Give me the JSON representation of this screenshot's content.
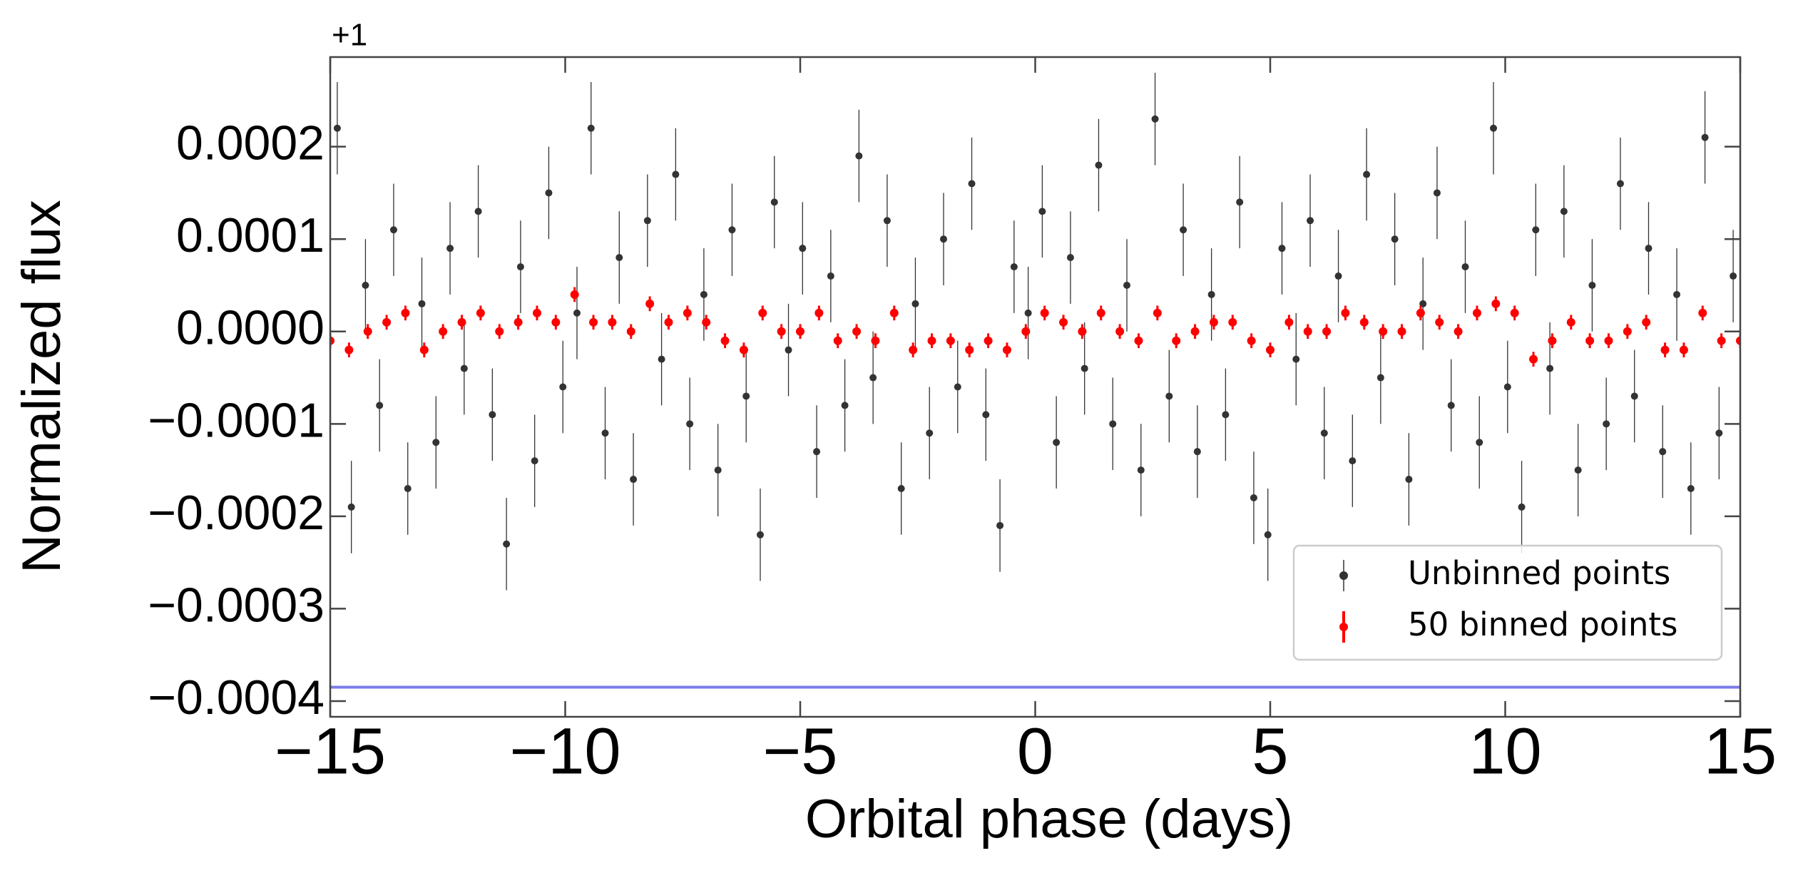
{
  "chart_data": {
    "type": "scatter",
    "xlabel": "Orbital phase (days)",
    "ylabel": "Normalized flux",
    "y_offset": "+1",
    "xlim": [
      -15,
      15
    ],
    "xticks": [
      {
        "value": -15,
        "label": "−15"
      },
      {
        "value": -10,
        "label": "−10"
      },
      {
        "value": -5,
        "label": "−5"
      },
      0,
      5,
      10,
      15
    ],
    "ylim": [
      -0.000417,
      0.000297
    ],
    "yticks": [
      {
        "value": 0.0002,
        "label": "0.0002"
      },
      {
        "value": 0.0001,
        "label": "0.0001"
      },
      {
        "value": 0,
        "label": "0.0000"
      },
      {
        "value": -0.0001,
        "label": "−0.0001"
      },
      {
        "value": -0.0002,
        "label": "−0.0002"
      },
      {
        "value": -0.0003,
        "label": "−0.0003"
      },
      {
        "value": -0.0004,
        "label": "−0.0004"
      }
    ],
    "hline": {
      "value": -0.000385,
      "color": "#7b7be8"
    },
    "legend": "lower right",
    "series": [
      {
        "name": "Unbinned points",
        "color": "#333333",
        "error": 5e-05,
        "x": [
          -14.85,
          -14.55,
          -14.25,
          -13.95,
          -13.65,
          -13.35,
          -13.05,
          -12.75,
          -12.45,
          -12.15,
          -11.85,
          -11.55,
          -11.25,
          -10.95,
          -10.65,
          -10.35,
          -10.05,
          -9.75,
          -9.45,
          -9.15,
          -8.85,
          -8.55,
          -8.25,
          -7.95,
          -7.65,
          -7.35,
          -7.05,
          -6.75,
          -6.45,
          -6.15,
          -5.85,
          -5.55,
          -5.25,
          -4.95,
          -4.65,
          -4.35,
          -4.05,
          -3.75,
          -3.45,
          -3.15,
          -2.85,
          -2.55,
          -2.25,
          -1.95,
          -1.65,
          -1.35,
          -1.05,
          -0.75,
          -0.45,
          -0.15,
          0.15,
          0.45,
          0.75,
          1.05,
          1.35,
          1.65,
          1.95,
          2.25,
          2.55,
          2.85,
          3.15,
          3.45,
          3.75,
          4.05,
          4.35,
          4.65,
          4.95,
          5.25,
          5.55,
          5.85,
          6.15,
          6.45,
          6.75,
          7.05,
          7.35,
          7.65,
          7.95,
          8.25,
          8.55,
          8.85,
          9.15,
          9.45,
          9.75,
          10.05,
          10.35,
          10.65,
          10.95,
          11.25,
          11.55,
          11.85,
          12.15,
          12.45,
          12.75,
          13.05,
          13.35,
          13.65,
          13.95,
          14.25,
          14.55,
          14.85
        ],
        "values": [
          0.00022,
          -0.00019,
          5e-05,
          -8e-05,
          0.00011,
          -0.00017,
          3e-05,
          -0.00012,
          9e-05,
          -4e-05,
          0.00013,
          -9e-05,
          -0.00023,
          7e-05,
          -0.00014,
          0.00015,
          -6e-05,
          2e-05,
          0.00022,
          -0.00011,
          8e-05,
          -0.00016,
          0.00012,
          -3e-05,
          0.00017,
          -0.0001,
          4e-05,
          -0.00015,
          0.00011,
          -7e-05,
          -0.00022,
          0.00014,
          -2e-05,
          9e-05,
          -0.00013,
          6e-05,
          -8e-05,
          0.00019,
          -5e-05,
          0.00012,
          -0.00017,
          3e-05,
          -0.00011,
          0.0001,
          -6e-05,
          0.00016,
          -9e-05,
          -0.00021,
          7e-05,
          2e-05,
          0.00013,
          -0.00012,
          8e-05,
          -4e-05,
          0.00018,
          -0.0001,
          5e-05,
          -0.00015,
          0.00023,
          -7e-05,
          0.00011,
          -0.00013,
          4e-05,
          -9e-05,
          0.00014,
          -0.00018,
          -0.00022,
          9e-05,
          -3e-05,
          0.00012,
          -0.00011,
          6e-05,
          -0.00014,
          0.00017,
          -5e-05,
          0.0001,
          -0.00016,
          3e-05,
          0.00015,
          -8e-05,
          7e-05,
          -0.00012,
          0.00022,
          -6e-05,
          -0.00019,
          0.00011,
          -4e-05,
          0.00013,
          -0.00015,
          5e-05,
          -0.0001,
          0.00016,
          -7e-05,
          9e-05,
          -0.00013,
          4e-05,
          -0.00017,
          0.00021,
          -0.00011,
          6e-05
        ]
      },
      {
        "name": "50 binned points",
        "color": "#ff0000",
        "error": 8e-06,
        "x": [
          -15,
          -14.6,
          -14.2,
          -13.8,
          -13.4,
          -13,
          -12.6,
          -12.2,
          -11.8,
          -11.4,
          -11,
          -10.6,
          -10.2,
          -9.8,
          -9.4,
          -9,
          -8.6,
          -8.2,
          -7.8,
          -7.4,
          -7,
          -6.6,
          -6.2,
          -5.8,
          -5.4,
          -5,
          -4.6,
          -4.2,
          -3.8,
          -3.4,
          -3,
          -2.6,
          -2.2,
          -1.8,
          -1.4,
          -1,
          -0.6,
          -0.2,
          0.2,
          0.6,
          1,
          1.4,
          1.8,
          2.2,
          2.6,
          3,
          3.4,
          3.8,
          4.2,
          4.6,
          5,
          5.4,
          5.8,
          6.2,
          6.6,
          7,
          7.4,
          7.8,
          8.2,
          8.6,
          9,
          9.4,
          9.8,
          10.2,
          10.6,
          11,
          11.4,
          11.8,
          12.2,
          12.6,
          13,
          13.4,
          13.8,
          14.2,
          14.6,
          15
        ],
        "values": [
          -1e-05,
          -2e-05,
          0.0,
          1e-05,
          2e-05,
          -2e-05,
          0.0,
          1e-05,
          2e-05,
          0.0,
          1e-05,
          2e-05,
          1e-05,
          4e-05,
          1e-05,
          1e-05,
          0.0,
          3e-05,
          1e-05,
          2e-05,
          1e-05,
          -1e-05,
          -2e-05,
          2e-05,
          0.0,
          0.0,
          2e-05,
          -1e-05,
          0.0,
          -1e-05,
          2e-05,
          -2e-05,
          -1e-05,
          -1e-05,
          -2e-05,
          -1e-05,
          -2e-05,
          0.0,
          2e-05,
          1e-05,
          0.0,
          2e-05,
          0.0,
          -1e-05,
          2e-05,
          -1e-05,
          0.0,
          1e-05,
          1e-05,
          -1e-05,
          -2e-05,
          1e-05,
          0.0,
          0.0,
          2e-05,
          1e-05,
          0.0,
          0.0,
          2e-05,
          1e-05,
          0.0,
          2e-05,
          3e-05,
          2e-05,
          -3e-05,
          -1e-05,
          1e-05,
          -1e-05,
          -1e-05,
          0.0,
          1e-05,
          -2e-05,
          -2e-05,
          2e-05,
          -1e-05,
          -1e-05
        ]
      }
    ]
  }
}
